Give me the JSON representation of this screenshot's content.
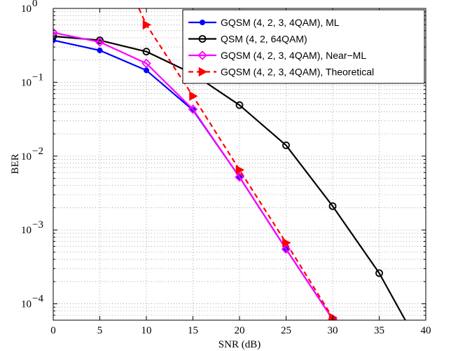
{
  "chart_data": {
    "type": "line",
    "title": "",
    "xlabel": "SNR (dB)",
    "ylabel": "BER",
    "xlim": [
      0,
      40
    ],
    "ylim": [
      6e-05,
      1
    ],
    "yscale": "log",
    "grid": true,
    "legend_position": "top-right",
    "xticks": [
      0,
      5,
      10,
      15,
      20,
      25,
      30,
      35,
      40
    ],
    "xtick_labels": [
      "0",
      "5",
      "10",
      "15",
      "20",
      "25",
      "30",
      "35",
      "40"
    ],
    "yticks": [
      1,
      0.1,
      0.01,
      0.001,
      0.0001
    ],
    "ytick_labels": [
      {
        "base": "10",
        "exp": "0"
      },
      {
        "base": "10",
        "exp": "−1"
      },
      {
        "base": "10",
        "exp": "−2"
      },
      {
        "base": "10",
        "exp": "−3"
      },
      {
        "base": "10",
        "exp": "−4"
      }
    ],
    "series": [
      {
        "name": "GQSM (4, 2, 3, 4QAM), ML",
        "color": "#0000ff",
        "line_style": "solid",
        "marker": "dot",
        "x": [
          0,
          5,
          10,
          15,
          20,
          25,
          30
        ],
        "y": [
          0.37,
          0.27,
          0.145,
          0.042,
          0.0052,
          0.00055,
          6.2e-05
        ]
      },
      {
        "name": "QSM (4, 2, 64QAM)",
        "color": "#000000",
        "line_style": "solid",
        "marker": "circle",
        "x": [
          0,
          5,
          10,
          15,
          20,
          25,
          30,
          35,
          37.8
        ],
        "y": [
          0.42,
          0.37,
          0.26,
          0.13,
          0.049,
          0.014,
          0.0021,
          0.00026,
          6e-05
        ]
      },
      {
        "name": "GQSM (4, 2, 3, 4QAM), Near−ML",
        "color": "#ff00ff",
        "line_style": "solid",
        "marker": "diamond",
        "x": [
          0,
          5,
          10,
          15,
          20,
          25,
          30
        ],
        "y": [
          0.47,
          0.35,
          0.18,
          0.043,
          0.0052,
          0.00055,
          6.2e-05
        ]
      },
      {
        "name": "GQSM (4, 2, 3, 4QAM), Theoretical",
        "color": "#ff0000",
        "line_style": "dashed",
        "marker": "triangle-right",
        "x": [
          9.2,
          10,
          15,
          20,
          25,
          30
        ],
        "y": [
          1,
          0.6,
          0.065,
          0.0065,
          0.00067,
          6.5e-05
        ]
      }
    ]
  }
}
